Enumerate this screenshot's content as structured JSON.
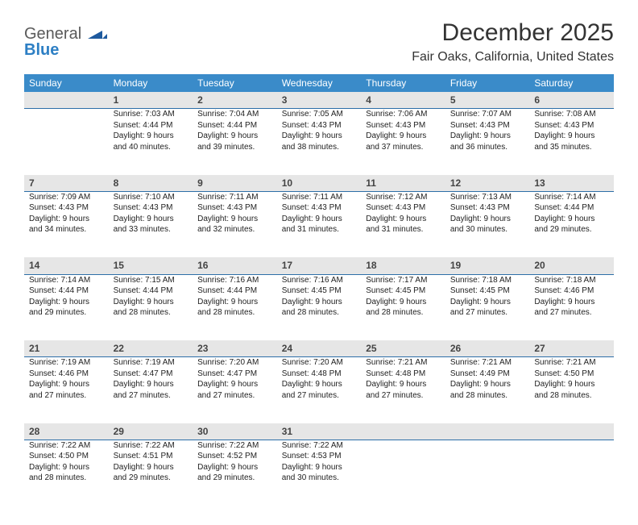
{
  "logo": {
    "line1": "General",
    "line2": "Blue"
  },
  "title": "December 2025",
  "location": "Fair Oaks, California, United States",
  "colors": {
    "header_bg": "#3a8bc9",
    "header_text": "#ffffff",
    "daynum_bg": "#e6e6e6",
    "daynum_border": "#2d6fa8",
    "text": "#222222",
    "logo_general": "#5a5a5a",
    "logo_blue": "#2d7fc4"
  },
  "daysOfWeek": [
    "Sunday",
    "Monday",
    "Tuesday",
    "Wednesday",
    "Thursday",
    "Friday",
    "Saturday"
  ],
  "weeks": [
    [
      null,
      {
        "n": "1",
        "sunrise": "7:03 AM",
        "sunset": "4:44 PM",
        "daylight": "9 hours and 40 minutes."
      },
      {
        "n": "2",
        "sunrise": "7:04 AM",
        "sunset": "4:44 PM",
        "daylight": "9 hours and 39 minutes."
      },
      {
        "n": "3",
        "sunrise": "7:05 AM",
        "sunset": "4:43 PM",
        "daylight": "9 hours and 38 minutes."
      },
      {
        "n": "4",
        "sunrise": "7:06 AM",
        "sunset": "4:43 PM",
        "daylight": "9 hours and 37 minutes."
      },
      {
        "n": "5",
        "sunrise": "7:07 AM",
        "sunset": "4:43 PM",
        "daylight": "9 hours and 36 minutes."
      },
      {
        "n": "6",
        "sunrise": "7:08 AM",
        "sunset": "4:43 PM",
        "daylight": "9 hours and 35 minutes."
      }
    ],
    [
      {
        "n": "7",
        "sunrise": "7:09 AM",
        "sunset": "4:43 PM",
        "daylight": "9 hours and 34 minutes."
      },
      {
        "n": "8",
        "sunrise": "7:10 AM",
        "sunset": "4:43 PM",
        "daylight": "9 hours and 33 minutes."
      },
      {
        "n": "9",
        "sunrise": "7:11 AM",
        "sunset": "4:43 PM",
        "daylight": "9 hours and 32 minutes."
      },
      {
        "n": "10",
        "sunrise": "7:11 AM",
        "sunset": "4:43 PM",
        "daylight": "9 hours and 31 minutes."
      },
      {
        "n": "11",
        "sunrise": "7:12 AM",
        "sunset": "4:43 PM",
        "daylight": "9 hours and 31 minutes."
      },
      {
        "n": "12",
        "sunrise": "7:13 AM",
        "sunset": "4:43 PM",
        "daylight": "9 hours and 30 minutes."
      },
      {
        "n": "13",
        "sunrise": "7:14 AM",
        "sunset": "4:44 PM",
        "daylight": "9 hours and 29 minutes."
      }
    ],
    [
      {
        "n": "14",
        "sunrise": "7:14 AM",
        "sunset": "4:44 PM",
        "daylight": "9 hours and 29 minutes."
      },
      {
        "n": "15",
        "sunrise": "7:15 AM",
        "sunset": "4:44 PM",
        "daylight": "9 hours and 28 minutes."
      },
      {
        "n": "16",
        "sunrise": "7:16 AM",
        "sunset": "4:44 PM",
        "daylight": "9 hours and 28 minutes."
      },
      {
        "n": "17",
        "sunrise": "7:16 AM",
        "sunset": "4:45 PM",
        "daylight": "9 hours and 28 minutes."
      },
      {
        "n": "18",
        "sunrise": "7:17 AM",
        "sunset": "4:45 PM",
        "daylight": "9 hours and 28 minutes."
      },
      {
        "n": "19",
        "sunrise": "7:18 AM",
        "sunset": "4:45 PM",
        "daylight": "9 hours and 27 minutes."
      },
      {
        "n": "20",
        "sunrise": "7:18 AM",
        "sunset": "4:46 PM",
        "daylight": "9 hours and 27 minutes."
      }
    ],
    [
      {
        "n": "21",
        "sunrise": "7:19 AM",
        "sunset": "4:46 PM",
        "daylight": "9 hours and 27 minutes."
      },
      {
        "n": "22",
        "sunrise": "7:19 AM",
        "sunset": "4:47 PM",
        "daylight": "9 hours and 27 minutes."
      },
      {
        "n": "23",
        "sunrise": "7:20 AM",
        "sunset": "4:47 PM",
        "daylight": "9 hours and 27 minutes."
      },
      {
        "n": "24",
        "sunrise": "7:20 AM",
        "sunset": "4:48 PM",
        "daylight": "9 hours and 27 minutes."
      },
      {
        "n": "25",
        "sunrise": "7:21 AM",
        "sunset": "4:48 PM",
        "daylight": "9 hours and 27 minutes."
      },
      {
        "n": "26",
        "sunrise": "7:21 AM",
        "sunset": "4:49 PM",
        "daylight": "9 hours and 28 minutes."
      },
      {
        "n": "27",
        "sunrise": "7:21 AM",
        "sunset": "4:50 PM",
        "daylight": "9 hours and 28 minutes."
      }
    ],
    [
      {
        "n": "28",
        "sunrise": "7:22 AM",
        "sunset": "4:50 PM",
        "daylight": "9 hours and 28 minutes."
      },
      {
        "n": "29",
        "sunrise": "7:22 AM",
        "sunset": "4:51 PM",
        "daylight": "9 hours and 29 minutes."
      },
      {
        "n": "30",
        "sunrise": "7:22 AM",
        "sunset": "4:52 PM",
        "daylight": "9 hours and 29 minutes."
      },
      {
        "n": "31",
        "sunrise": "7:22 AM",
        "sunset": "4:53 PM",
        "daylight": "9 hours and 30 minutes."
      },
      null,
      null,
      null
    ]
  ],
  "labels": {
    "sunrise": "Sunrise:",
    "sunset": "Sunset:",
    "daylight": "Daylight:"
  }
}
